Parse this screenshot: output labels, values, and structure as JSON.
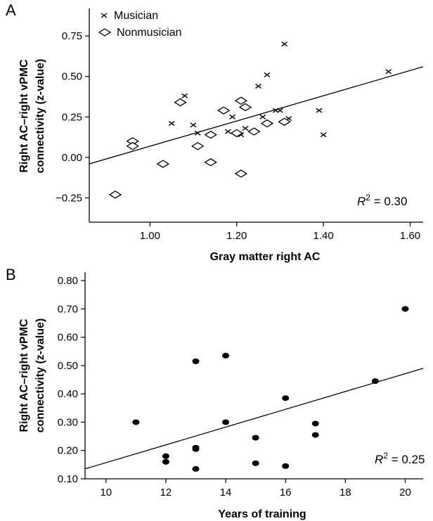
{
  "figure": {
    "charts": [
      {
        "panel_label": "A",
        "type": "scatter",
        "xlabel": "Gray matter right AC",
        "ylabel": [
          "Right AC–right vPMC",
          "connectivity (z-value)"
        ],
        "xlim": [
          0.86,
          1.63
        ],
        "ylim": [
          -0.4,
          0.92
        ],
        "xticks": [
          1.0,
          1.2,
          1.4,
          1.6
        ],
        "xtick_labels": [
          "1.00",
          "1.20",
          "1.40",
          "1.60"
        ],
        "yticks": [
          0.75,
          0.5,
          0.25,
          0.0,
          -0.25
        ],
        "ytick_labels": [
          "0.75",
          "0.50",
          "0.25",
          "0.00",
          "−0.25"
        ],
        "annotation": {
          "base": "R",
          "sup": "2",
          "rest": " = 0.30"
        },
        "legend": {
          "placement": "top-left",
          "entries": [
            {
              "marker": "x",
              "label": "Musician"
            },
            {
              "marker": "diamond",
              "label": "Nonmusician"
            }
          ]
        },
        "fit_line": {
          "x": [
            0.86,
            1.63
          ],
          "y": [
            -0.04,
            0.56
          ]
        },
        "series": [
          {
            "name": "Musician",
            "marker": "x",
            "points": [
              [
                1.05,
                0.21
              ],
              [
                1.08,
                0.38
              ],
              [
                1.1,
                0.2
              ],
              [
                1.11,
                0.15
              ],
              [
                1.18,
                0.16
              ],
              [
                1.19,
                0.25
              ],
              [
                1.21,
                0.14
              ],
              [
                1.22,
                0.18
              ],
              [
                1.25,
                0.44
              ],
              [
                1.26,
                0.25
              ],
              [
                1.27,
                0.51
              ],
              [
                1.29,
                0.29
              ],
              [
                1.3,
                0.29
              ],
              [
                1.31,
                0.7
              ],
              [
                1.32,
                0.24
              ],
              [
                1.39,
                0.29
              ],
              [
                1.4,
                0.14
              ],
              [
                1.55,
                0.53
              ]
            ]
          },
          {
            "name": "Nonmusician",
            "marker": "diamond",
            "points": [
              [
                0.92,
                -0.23
              ],
              [
                0.96,
                0.1
              ],
              [
                0.96,
                0.07
              ],
              [
                1.03,
                -0.04
              ],
              [
                1.07,
                0.34
              ],
              [
                1.11,
                0.07
              ],
              [
                1.14,
                0.14
              ],
              [
                1.14,
                -0.03
              ],
              [
                1.17,
                0.29
              ],
              [
                1.2,
                0.15
              ],
              [
                1.21,
                0.35
              ],
              [
                1.21,
                -0.1
              ],
              [
                1.22,
                0.31
              ],
              [
                1.24,
                0.16
              ],
              [
                1.27,
                0.21
              ],
              [
                1.31,
                0.22
              ]
            ]
          }
        ]
      },
      {
        "panel_label": "B",
        "type": "scatter",
        "xlabel": "Years of training",
        "ylabel": [
          "Right AC–right vPMC",
          "connectivity (z-value)"
        ],
        "xlim": [
          9.3,
          20.6
        ],
        "ylim": [
          0.1,
          0.83
        ],
        "xticks": [
          10,
          12,
          14,
          16,
          18,
          20
        ],
        "xtick_labels": [
          "10",
          "12",
          "14",
          "16",
          "18",
          "20"
        ],
        "yticks": [
          0.8,
          0.7,
          0.6,
          0.5,
          0.4,
          0.3,
          0.2,
          0.1
        ],
        "ytick_labels": [
          "0.80",
          "0.70",
          "0.60",
          "0.50",
          "0.40",
          "0.30",
          "0.20",
          "0.10"
        ],
        "annotation": {
          "base": "R",
          "sup": "2",
          "rest": " = 0.25"
        },
        "fit_line": {
          "x": [
            9.3,
            20.6
          ],
          "y": [
            0.135,
            0.49
          ]
        },
        "series": [
          {
            "marker": "dot",
            "points": [
              [
                11,
                0.3
              ],
              [
                12,
                0.18
              ],
              [
                12,
                0.16
              ],
              [
                13,
                0.515
              ],
              [
                13,
                0.21
              ],
              [
                13,
                0.205
              ],
              [
                13,
                0.135
              ],
              [
                14,
                0.535
              ],
              [
                14,
                0.3
              ],
              [
                15,
                0.245
              ],
              [
                15,
                0.155
              ],
              [
                16,
                0.385
              ],
              [
                16,
                0.145
              ],
              [
                17,
                0.295
              ],
              [
                17,
                0.255
              ],
              [
                19,
                0.445
              ],
              [
                20,
                0.7
              ]
            ]
          }
        ]
      }
    ]
  }
}
